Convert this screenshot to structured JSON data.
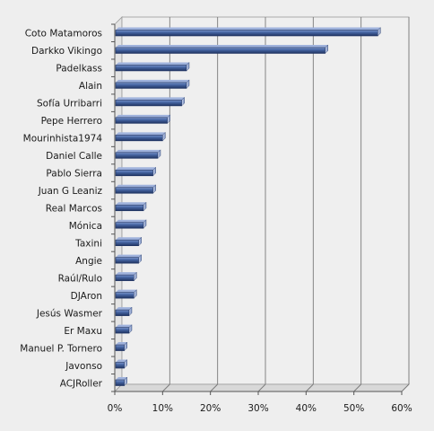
{
  "chart_data": {
    "type": "bar",
    "orientation": "horizontal",
    "categories": [
      "Coto Matamoros",
      "Darkko Vikingo",
      "Padelkass",
      "Alain",
      "Sofía Urribarri",
      "Pepe Herrero",
      "Mourinhista1974",
      "Daniel Calle",
      "Pablo Sierra",
      "Juan G Leaniz",
      "Real Marcos",
      "Mónica",
      "Taxini",
      "Angie",
      "Raúl/Rulo",
      "DJAron",
      "Jesús Wasmer",
      "Er Maxu",
      "Manuel P. Tornero",
      "Javonso",
      "ACJRoller"
    ],
    "values": [
      55,
      44,
      15,
      15,
      14,
      11,
      10,
      9,
      8,
      8,
      6,
      6,
      5,
      5,
      4,
      4,
      3,
      3,
      2,
      2,
      2
    ],
    "xlim": [
      0,
      60
    ],
    "xticks": [
      "0%",
      "10%",
      "20%",
      "30%",
      "40%",
      "50%",
      "60%"
    ],
    "grid": true,
    "title": "",
    "xlabel": "",
    "ylabel": "",
    "bar_color": "#4a6aa8",
    "bar_highlight": "#7f97c9",
    "bar_shadow": "#1f3361"
  }
}
